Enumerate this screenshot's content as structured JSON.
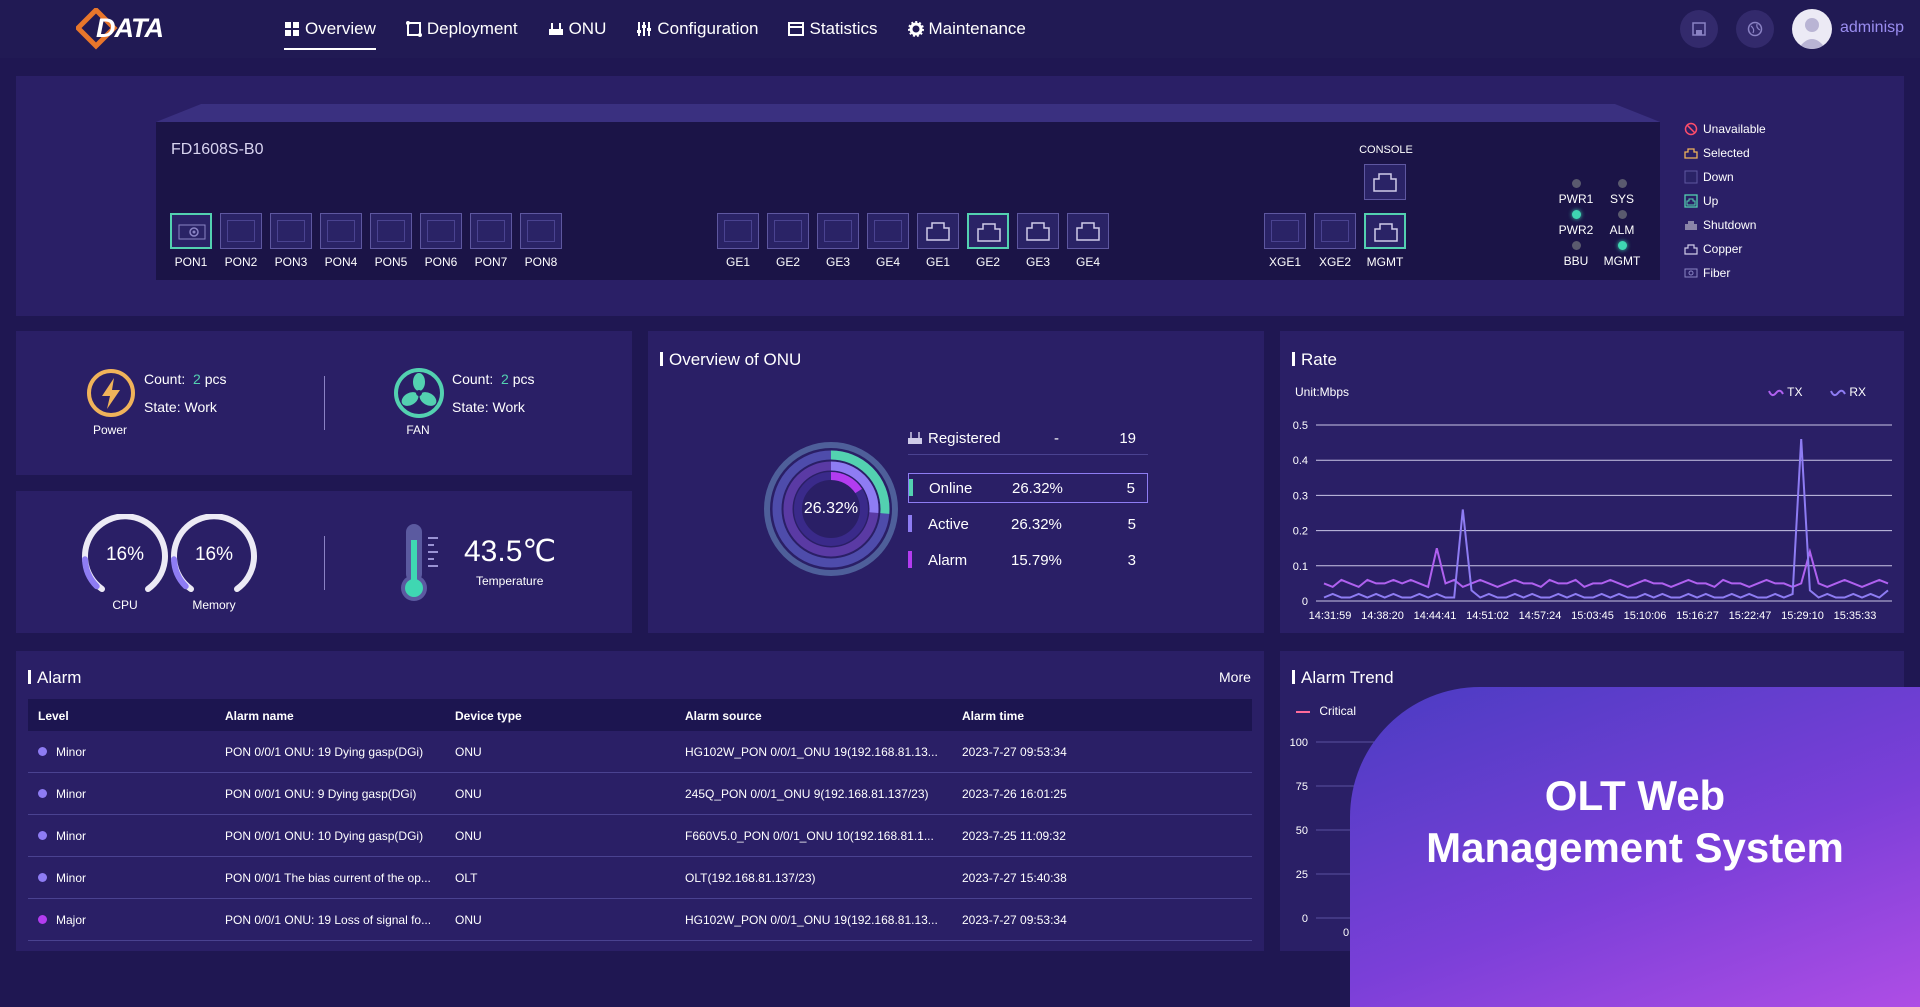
{
  "header": {
    "logo_text": "DATA",
    "nav": [
      {
        "label": "Overview",
        "icon": "grid-icon",
        "active": true
      },
      {
        "label": "Deployment",
        "icon": "deploy-icon"
      },
      {
        "label": "ONU",
        "icon": "router-icon"
      },
      {
        "label": "Configuration",
        "icon": "sliders-icon"
      },
      {
        "label": "Statistics",
        "icon": "statistics-icon"
      },
      {
        "label": "Maintenance",
        "icon": "gear-icon"
      }
    ],
    "username": "adminisp"
  },
  "device": {
    "model": "FD1608S-B0",
    "console_label": "CONSOLE",
    "pon_ports": [
      {
        "label": "PON1",
        "state": "up"
      },
      {
        "label": "PON2",
        "state": "down"
      },
      {
        "label": "PON3",
        "state": "down"
      },
      {
        "label": "PON4",
        "state": "down"
      },
      {
        "label": "PON5",
        "state": "down"
      },
      {
        "label": "PON6",
        "state": "down"
      },
      {
        "label": "PON7",
        "state": "down"
      },
      {
        "label": "PON8",
        "state": "down"
      }
    ],
    "ge_ports": [
      {
        "label": "GE1",
        "state": "down"
      },
      {
        "label": "GE2",
        "state": "down"
      },
      {
        "label": "GE3",
        "state": "down"
      },
      {
        "label": "GE4",
        "state": "down"
      },
      {
        "label": "GE1",
        "state": "copper"
      },
      {
        "label": "GE2",
        "state": "up"
      },
      {
        "label": "GE3",
        "state": "copper"
      },
      {
        "label": "GE4",
        "state": "copper"
      }
    ],
    "uplink_ports": [
      {
        "label": "XGE1",
        "state": "down"
      },
      {
        "label": "XGE2",
        "state": "down"
      },
      {
        "label": "MGMT",
        "state": "up"
      }
    ],
    "leds": [
      {
        "label": "PWR1",
        "on": false
      },
      {
        "label": "SYS",
        "on": false
      },
      {
        "label": "PWR2",
        "on": true
      },
      {
        "label": "ALM",
        "on": false
      },
      {
        "label": "BBU",
        "on": false
      },
      {
        "label": "MGMT",
        "on": true
      }
    ],
    "legend": [
      "Unavailable",
      "Selected",
      "Down",
      "Up",
      "Shutdown",
      "Copper",
      "Fiber"
    ]
  },
  "hardware": {
    "power": {
      "count_label": "Count:",
      "count": "2",
      "unit": "pcs",
      "state_label": "State:",
      "state": "Work",
      "name": "Power"
    },
    "fan": {
      "count_label": "Count:",
      "count": "2",
      "unit": "pcs",
      "state_label": "State:",
      "state": "Work",
      "name": "FAN"
    },
    "cpu": {
      "value": "16%",
      "percent": 16,
      "name": "CPU"
    },
    "memory": {
      "value": "16%",
      "percent": 16,
      "name": "Memory"
    },
    "temperature": {
      "value": "43.5℃",
      "name": "Temperature"
    }
  },
  "onu": {
    "title": "Overview of ONU",
    "center_value": "26.32%",
    "rows": [
      {
        "label": "Registered",
        "percent": "-",
        "count": "19",
        "color": "#ffffff"
      },
      {
        "label": "Online",
        "percent": "26.32%",
        "count": "5",
        "color": "#53d1b0"
      },
      {
        "label": "Active",
        "percent": "26.32%",
        "count": "5",
        "color": "#8e7cf3"
      },
      {
        "label": "Alarm",
        "percent": "15.79%",
        "count": "3",
        "color": "#b33cf0"
      }
    ]
  },
  "chart_data": [
    {
      "type": "line",
      "title": "Rate",
      "unit_label": "Unit:Mbps",
      "ylim": [
        0,
        0.5
      ],
      "yticks": [
        "0.5",
        "0.4",
        "0.3",
        "0.2",
        "0.1",
        "0"
      ],
      "x_labels": [
        "14:31:59",
        "14:38:20",
        "14:44:41",
        "14:51:02",
        "14:57:24",
        "15:03:45",
        "15:10:06",
        "15:16:27",
        "15:22:47",
        "15:29:10",
        "15:35:33"
      ],
      "series": [
        {
          "name": "TX",
          "color": "#b061f0",
          "values": [
            0.05,
            0.04,
            0.06,
            0.05,
            0.04,
            0.06,
            0.05,
            0.05,
            0.06,
            0.05,
            0.06,
            0.05,
            0.04,
            0.15,
            0.05,
            0.06,
            0.04,
            0.05,
            0.06,
            0.05,
            0.04,
            0.05,
            0.06,
            0.05,
            0.05,
            0.04,
            0.06,
            0.05,
            0.05,
            0.06,
            0.04,
            0.05,
            0.05,
            0.06,
            0.05,
            0.04,
            0.05,
            0.06,
            0.05,
            0.05,
            0.04,
            0.05,
            0.06,
            0.05,
            0.05,
            0.04,
            0.06,
            0.05,
            0.05,
            0.04,
            0.05,
            0.06,
            0.05,
            0.05,
            0.04,
            0.05,
            0.14,
            0.05,
            0.04,
            0.05,
            0.06,
            0.05,
            0.04,
            0.05,
            0.06,
            0.05
          ]
        },
        {
          "name": "RX",
          "color": "#8e7cf3",
          "values": [
            0.01,
            0.02,
            0.01,
            0.01,
            0.02,
            0.01,
            0.02,
            0.01,
            0.02,
            0.01,
            0.01,
            0.02,
            0.01,
            0.02,
            0.01,
            0.01,
            0.26,
            0.03,
            0.01,
            0.02,
            0.01,
            0.01,
            0.02,
            0.01,
            0.02,
            0.01,
            0.01,
            0.02,
            0.01,
            0.02,
            0.01,
            0.01,
            0.02,
            0.01,
            0.02,
            0.01,
            0.01,
            0.02,
            0.01,
            0.02,
            0.01,
            0.01,
            0.02,
            0.01,
            0.02,
            0.01,
            0.01,
            0.02,
            0.01,
            0.02,
            0.01,
            0.01,
            0.02,
            0.01,
            0.02,
            0.46,
            0.03,
            0.01,
            0.02,
            0.01,
            0.01,
            0.02,
            0.01,
            0.02,
            0.01,
            0.03
          ]
        }
      ]
    },
    {
      "type": "line",
      "title": "Alarm Trend",
      "ylim": [
        0,
        100
      ],
      "yticks": [
        "100",
        "75",
        "50",
        "25",
        "0"
      ],
      "x_labels": [
        "0"
      ],
      "series": [
        {
          "name": "Critical",
          "color": "#ff6b9a",
          "values": []
        }
      ]
    }
  ],
  "alarm": {
    "title": "Alarm",
    "more_label": "More",
    "columns": [
      "Level",
      "Alarm name",
      "Device type",
      "Alarm source",
      "Alarm time"
    ],
    "rows": [
      {
        "level": "Minor",
        "color": "#8e7cf3",
        "name": "PON 0/0/1 ONU: 19 Dying gasp(DGi)",
        "device": "ONU",
        "source": "HG102W_PON 0/0/1_ONU 19(192.168.81.13...",
        "time": "2023-7-27 09:53:34"
      },
      {
        "level": "Minor",
        "color": "#8e7cf3",
        "name": "PON 0/0/1 ONU: 9 Dying gasp(DGi)",
        "device": "ONU",
        "source": "245Q_PON 0/0/1_ONU 9(192.168.81.137/23)",
        "time": "2023-7-26 16:01:25"
      },
      {
        "level": "Minor",
        "color": "#8e7cf3",
        "name": "PON 0/0/1 ONU: 10 Dying gasp(DGi)",
        "device": "ONU",
        "source": "F660V5.0_PON 0/0/1_ONU 10(192.168.81.1...",
        "time": "2023-7-25 11:09:32"
      },
      {
        "level": "Minor",
        "color": "#8e7cf3",
        "name": "PON 0/0/1 The bias current of the op...",
        "device": "OLT",
        "source": "OLT(192.168.81.137/23)",
        "time": "2023-7-27 15:40:38"
      },
      {
        "level": "Major",
        "color": "#b33cf0",
        "name": "PON 0/0/1 ONU: 19 Loss of signal fo...",
        "device": "ONU",
        "source": "HG102W_PON 0/0/1_ONU 19(192.168.81.13...",
        "time": "2023-7-27 09:53:34"
      }
    ]
  },
  "promo": {
    "line1": "OLT Web",
    "line2": "Management System"
  }
}
